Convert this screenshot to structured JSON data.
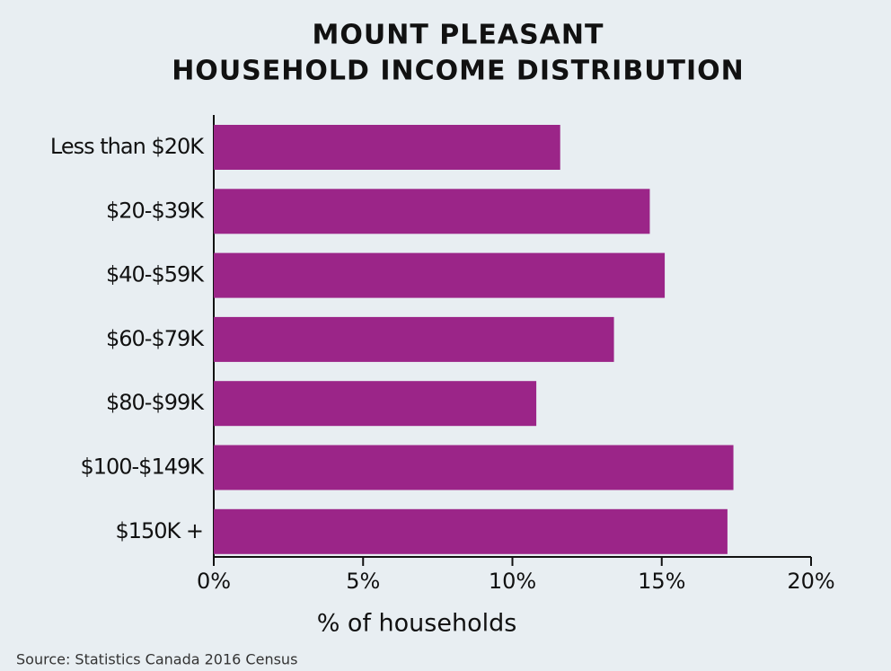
{
  "chart_data": {
    "type": "barh",
    "title": [
      "MOUNT PLEASANT",
      "HOUSEHOLD INCOME DISTRIBUTION"
    ],
    "categories": [
      "Less than $20K",
      "$20-$39K",
      "$40-$59K",
      "$60-$79K",
      "$80-$99K",
      "$100-$149K",
      "$150K +"
    ],
    "values": [
      11.6,
      14.6,
      15.1,
      13.4,
      10.8,
      17.4,
      17.2
    ],
    "color": "#9b2588",
    "xlim": [
      0,
      20
    ],
    "xticks": [
      {
        "value": 0,
        "label": "0%"
      },
      {
        "value": 5,
        "label": "5%"
      },
      {
        "value": 10,
        "label": "10%"
      },
      {
        "value": 15,
        "label": "15%"
      },
      {
        "value": 20,
        "label": "20%"
      }
    ],
    "xlabel": "% of households",
    "source": "Source: Statistics Canada 2016 Census"
  }
}
